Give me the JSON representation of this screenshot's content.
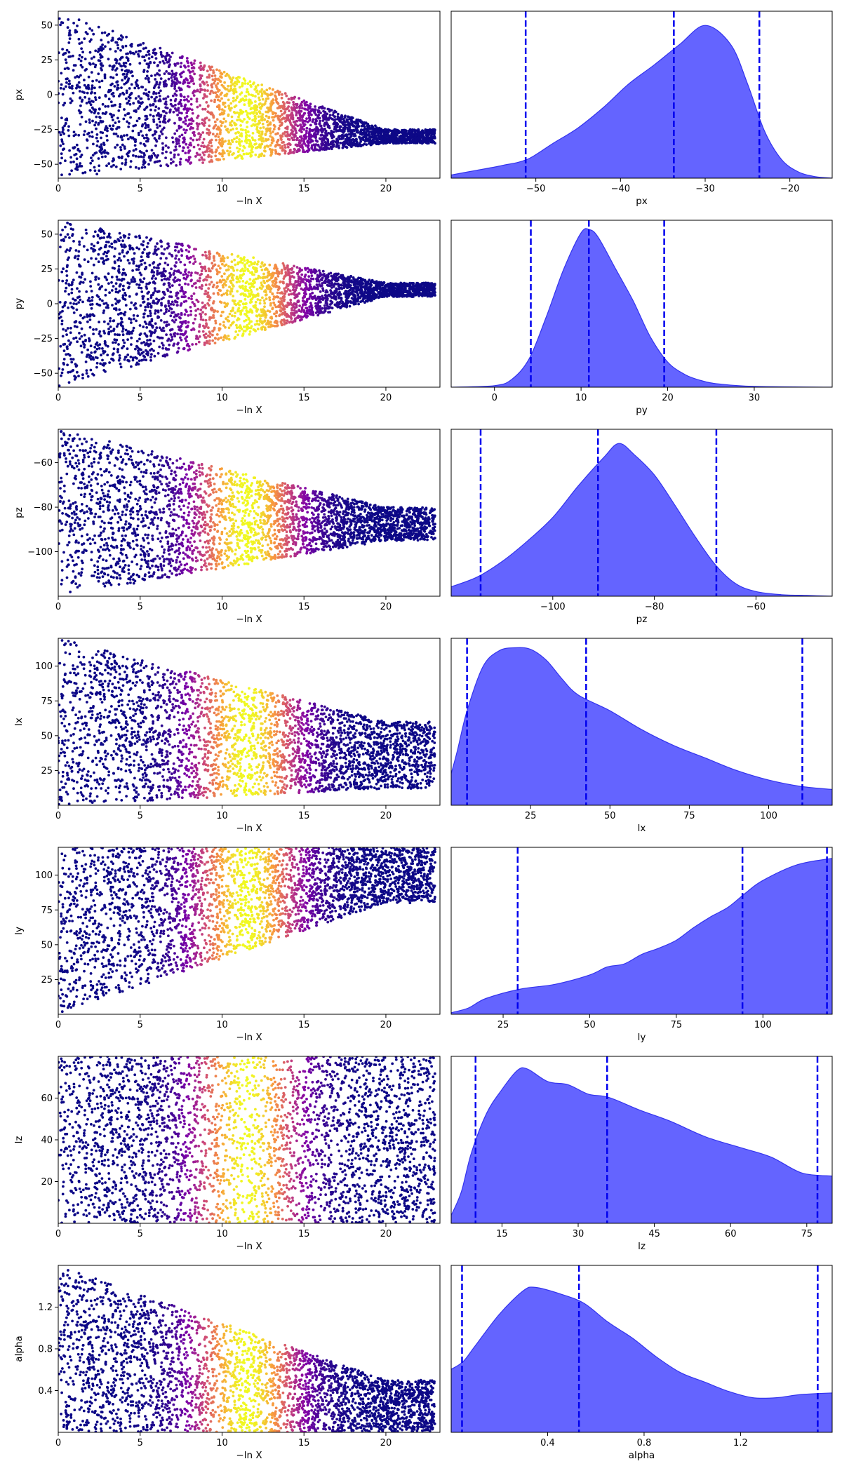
{
  "figure": {
    "background": "#ffffff",
    "trace_xlabel": "−ln X",
    "colormap": [
      "#0d0887",
      "#7e03a8",
      "#cc4778",
      "#f89540",
      "#f0f921"
    ],
    "kde_fill": "#6464ff",
    "kde_line": "#3333ee",
    "quantile_line": "#0000ee"
  },
  "chart_data": [
    {
      "type": "scatter",
      "name": "trace-px",
      "param": "px",
      "ylabel": "px",
      "xlabel": "−ln X",
      "xlim": [
        0,
        23.3
      ],
      "ylim": [
        -60,
        60
      ],
      "xticks": [
        0,
        5,
        10,
        15,
        20
      ],
      "yticks": [
        -50,
        -25,
        0,
        25,
        50
      ],
      "trace": {
        "fan": [
          -35,
          -25
        ],
        "peak": 11.5,
        "start": [
          -60,
          60
        ]
      }
    },
    {
      "type": "area",
      "name": "posterior-px",
      "param": "px",
      "xlabel": "px",
      "xlim": [
        -60,
        -15
      ],
      "xticks": [
        -50,
        -40,
        -30,
        -20
      ],
      "quantiles": [
        -51.2,
        -33.7,
        -23.6
      ],
      "curve": {
        "x": [
          -60,
          -57,
          -54,
          -51,
          -48,
          -45,
          -42,
          -39,
          -36,
          -33,
          -30,
          -27,
          -25,
          -23,
          -21,
          -19,
          -17,
          -15
        ],
        "y": [
          0.02,
          0.05,
          0.08,
          0.12,
          0.22,
          0.32,
          0.45,
          0.6,
          0.72,
          0.85,
          0.97,
          0.85,
          0.6,
          0.3,
          0.12,
          0.04,
          0.01,
          0
        ]
      }
    },
    {
      "type": "scatter",
      "name": "trace-py",
      "param": "py",
      "ylabel": "py",
      "xlabel": "−ln X",
      "xlim": [
        0,
        23.3
      ],
      "ylim": [
        -60,
        60
      ],
      "xticks": [
        0,
        5,
        10,
        15,
        20
      ],
      "yticks": [
        -50,
        -25,
        0,
        25,
        50
      ],
      "trace": {
        "fan": [
          5,
          15
        ],
        "peak": 11.5,
        "start": [
          -60,
          60
        ]
      }
    },
    {
      "type": "area",
      "name": "posterior-py",
      "param": "py",
      "xlabel": "py",
      "xlim": [
        -5,
        39
      ],
      "xticks": [
        0,
        10,
        20,
        30
      ],
      "quantiles": [
        4.2,
        10.9,
        19.6
      ],
      "curve": {
        "x": [
          -5,
          0,
          2,
          4,
          6,
          8,
          10,
          11,
          12,
          14,
          16,
          18,
          20,
          22,
          24,
          26,
          30,
          39
        ],
        "y": [
          0,
          0.01,
          0.05,
          0.18,
          0.45,
          0.75,
          0.98,
          1.0,
          0.95,
          0.75,
          0.55,
          0.32,
          0.16,
          0.08,
          0.04,
          0.02,
          0.005,
          0
        ]
      }
    },
    {
      "type": "scatter",
      "name": "trace-pz",
      "param": "pz",
      "ylabel": "pz",
      "xlabel": "−ln X",
      "xlim": [
        0,
        23.3
      ],
      "ylim": [
        -120,
        -45
      ],
      "xticks": [
        0,
        5,
        10,
        15,
        20
      ],
      "yticks": [
        -100,
        -80,
        -60
      ],
      "trace": {
        "fan": [
          -95,
          -80
        ],
        "peak": 11.5,
        "start": [
          -120,
          -45
        ]
      }
    },
    {
      "type": "area",
      "name": "posterior-pz",
      "param": "pz",
      "xlabel": "pz",
      "xlim": [
        -120,
        -45
      ],
      "xticks": [
        -100,
        -80,
        -60
      ],
      "quantiles": [
        -114.2,
        -91.1,
        -67.8
      ],
      "curve": {
        "x": [
          -120,
          -115,
          -110,
          -105,
          -100,
          -95,
          -90,
          -87,
          -84,
          -80,
          -76,
          -72,
          -68,
          -64,
          -60,
          -55,
          -50,
          -45
        ],
        "y": [
          0.06,
          0.12,
          0.22,
          0.35,
          0.5,
          0.7,
          0.88,
          0.97,
          0.9,
          0.77,
          0.58,
          0.38,
          0.2,
          0.08,
          0.03,
          0.01,
          0.005,
          0
        ]
      }
    },
    {
      "type": "scatter",
      "name": "trace-lx",
      "param": "lx",
      "ylabel": "lx",
      "xlabel": "−ln X",
      "xlim": [
        0,
        23.3
      ],
      "ylim": [
        0,
        120
      ],
      "xticks": [
        0,
        5,
        10,
        15,
        20
      ],
      "yticks": [
        25,
        50,
        75,
        100
      ],
      "trace": {
        "fan": [
          12,
          60
        ],
        "peak": 11.5,
        "start": [
          0,
          120
        ]
      }
    },
    {
      "type": "area",
      "name": "posterior-lx",
      "param": "lx",
      "xlabel": "lx",
      "xlim": [
        0,
        120
      ],
      "xticks": [
        25,
        50,
        75,
        100
      ],
      "quantiles": [
        5,
        42.5,
        110.6
      ],
      "curve": {
        "x": [
          0,
          2,
          5,
          10,
          15,
          20,
          25,
          30,
          35,
          40,
          50,
          60,
          70,
          80,
          90,
          100,
          110,
          120
        ],
        "y": [
          0.2,
          0.35,
          0.6,
          0.88,
          0.98,
          1.0,
          0.99,
          0.92,
          0.8,
          0.7,
          0.6,
          0.48,
          0.38,
          0.3,
          0.22,
          0.16,
          0.12,
          0.1
        ]
      }
    },
    {
      "type": "scatter",
      "name": "trace-ly",
      "param": "ly",
      "ylabel": "ly",
      "xlabel": "−ln X",
      "xlim": [
        0,
        23.3
      ],
      "ylim": [
        0,
        120
      ],
      "xticks": [
        0,
        5,
        10,
        15,
        20
      ],
      "yticks": [
        25,
        50,
        75,
        100
      ],
      "trace": {
        "fan": [
          80,
          120
        ],
        "peak": 11.5,
        "start": [
          0,
          120
        ]
      }
    },
    {
      "type": "area",
      "name": "posterior-ly",
      "param": "ly",
      "xlabel": "ly",
      "xlim": [
        10,
        120
      ],
      "xticks": [
        25,
        50,
        75,
        100
      ],
      "quantiles": [
        29.2,
        94.1,
        118.5
      ],
      "curve": {
        "x": [
          10,
          15,
          20,
          30,
          40,
          50,
          55,
          60,
          65,
          70,
          75,
          80,
          85,
          90,
          95,
          100,
          110,
          120
        ],
        "y": [
          0.01,
          0.04,
          0.1,
          0.16,
          0.19,
          0.25,
          0.3,
          0.32,
          0.38,
          0.42,
          0.47,
          0.55,
          0.62,
          0.68,
          0.77,
          0.85,
          0.95,
          0.99
        ]
      }
    },
    {
      "type": "scatter",
      "name": "trace-lz",
      "param": "lz",
      "ylabel": "lz",
      "xlabel": "−ln X",
      "xlim": [
        0,
        23.3
      ],
      "ylim": [
        0,
        80
      ],
      "xticks": [
        0,
        5,
        10,
        15,
        20
      ],
      "yticks": [
        20,
        40,
        60
      ],
      "trace": {
        "fan": [
          0,
          80
        ],
        "peak": 11.5,
        "start": [
          0,
          80
        ]
      }
    },
    {
      "type": "area",
      "name": "posterior-lz",
      "param": "lz",
      "xlabel": "lz",
      "xlim": [
        5,
        80
      ],
      "xticks": [
        15,
        30,
        45,
        60,
        75
      ],
      "quantiles": [
        9.8,
        35.7,
        77.1
      ],
      "curve": {
        "x": [
          5,
          7,
          9,
          12,
          15,
          18,
          20,
          24,
          28,
          32,
          36,
          42,
          48,
          55,
          62,
          68,
          74,
          80
        ],
        "y": [
          0.05,
          0.2,
          0.45,
          0.7,
          0.85,
          0.97,
          0.98,
          0.9,
          0.88,
          0.82,
          0.8,
          0.72,
          0.65,
          0.55,
          0.48,
          0.42,
          0.32,
          0.3
        ]
      }
    },
    {
      "type": "scatter",
      "name": "trace-alpha",
      "param": "alpha",
      "ylabel": "alpha",
      "xlabel": "−ln X",
      "xlim": [
        0,
        23.3
      ],
      "ylim": [
        0,
        1.6
      ],
      "xticks": [
        0,
        5,
        10,
        15,
        20
      ],
      "yticks": [
        0.4,
        0.8,
        1.2
      ],
      "trace": {
        "fan": [
          0,
          0.5
        ],
        "peak": 11.5,
        "start": [
          0,
          1.6
        ]
      }
    },
    {
      "type": "area",
      "name": "posterior-alpha",
      "param": "alpha",
      "xlabel": "alpha",
      "xlim": [
        0,
        1.58
      ],
      "xticks": [
        0.4,
        0.8,
        1.2
      ],
      "quantiles": [
        0.045,
        0.53,
        1.52
      ],
      "curve": {
        "x": [
          0,
          0.05,
          0.1,
          0.2,
          0.3,
          0.35,
          0.45,
          0.55,
          0.65,
          0.75,
          0.85,
          0.95,
          1.05,
          1.15,
          1.25,
          1.35,
          1.45,
          1.58
        ],
        "y": [
          0.4,
          0.45,
          0.55,
          0.75,
          0.9,
          0.92,
          0.88,
          0.82,
          0.7,
          0.6,
          0.48,
          0.38,
          0.32,
          0.26,
          0.22,
          0.22,
          0.24,
          0.25
        ]
      }
    }
  ]
}
